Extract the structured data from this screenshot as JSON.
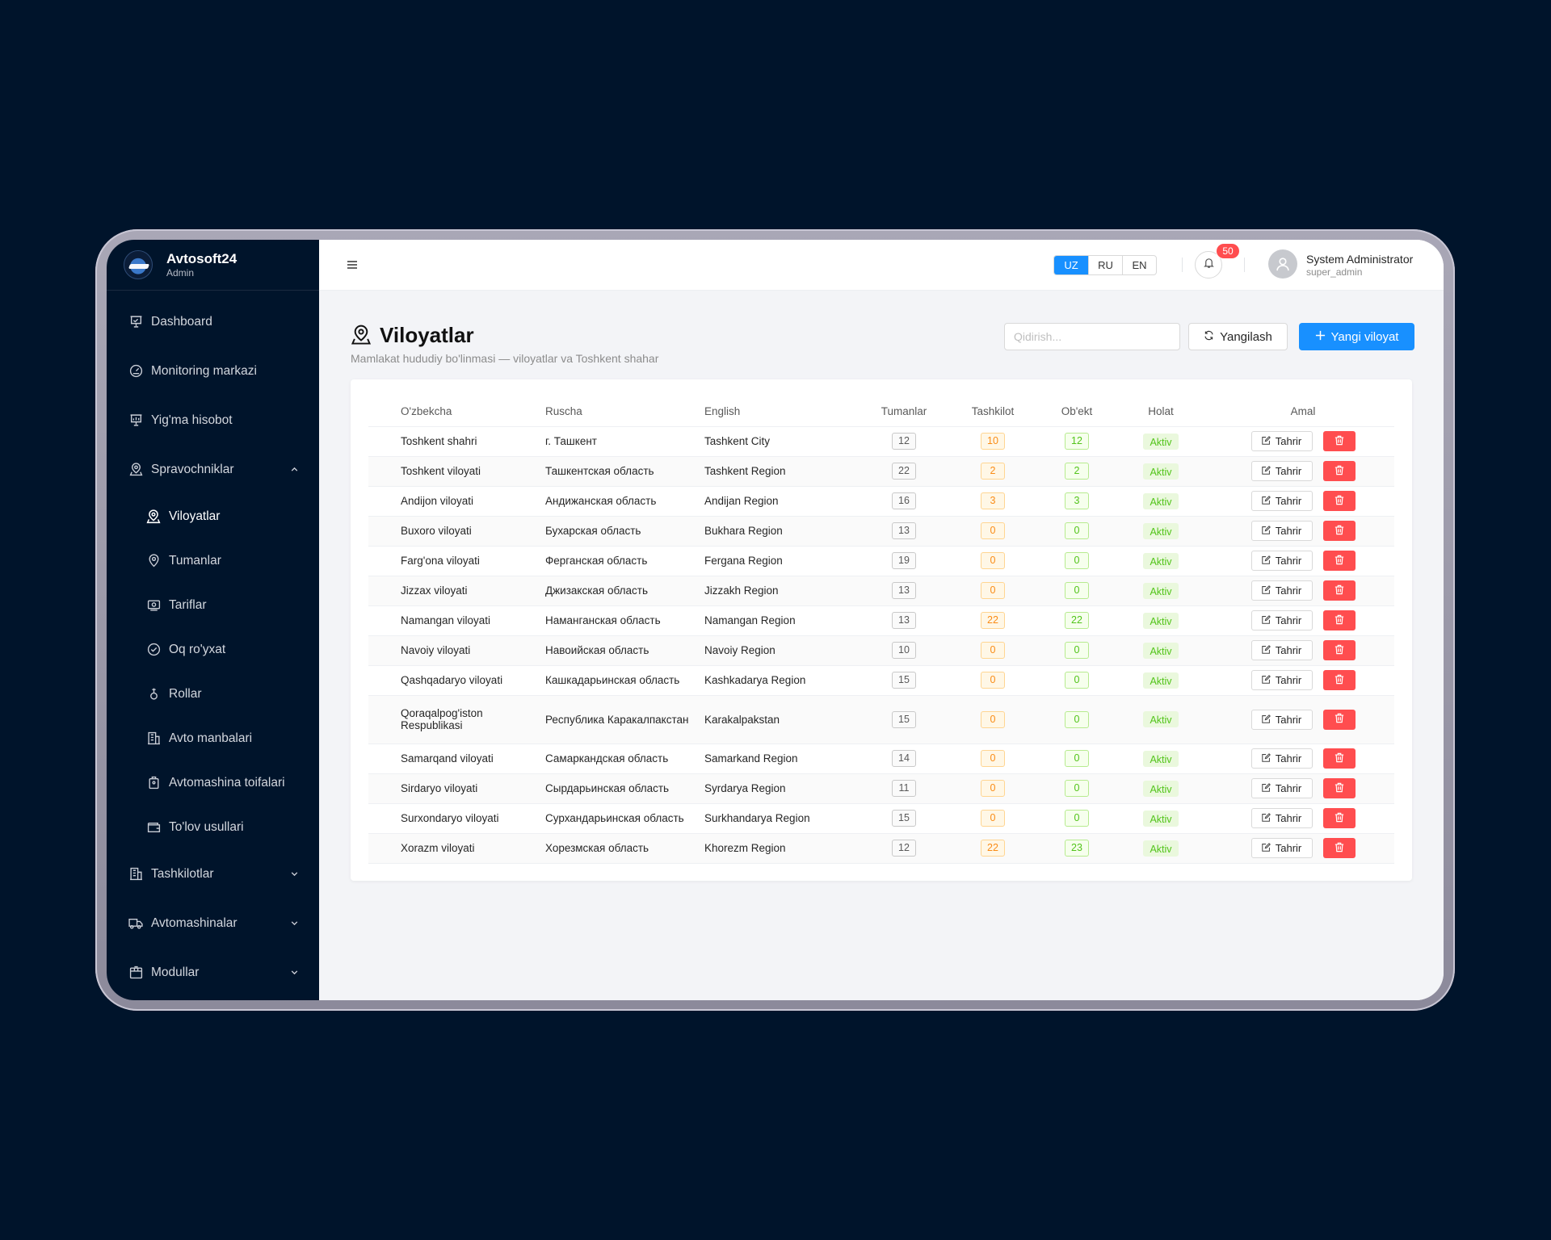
{
  "brand": {
    "name": "Avtosoft24",
    "role": "Admin"
  },
  "sidebar": {
    "items": [
      {
        "label": "Dashboard",
        "icon": "dashboard-icon"
      },
      {
        "label": "Monitoring markazi",
        "icon": "gauge-icon"
      },
      {
        "label": "Yig'ma hisobot",
        "icon": "report-icon"
      },
      {
        "label": "Spravochniklar",
        "icon": "map-pin-icon",
        "expanded": true
      },
      {
        "label": "Tashkilotlar",
        "icon": "building-icon"
      },
      {
        "label": "Avtomashinalar",
        "icon": "truck-icon"
      },
      {
        "label": "Modullar",
        "icon": "box-icon"
      }
    ],
    "subitems": [
      {
        "label": "Viloyatlar",
        "icon": "map-pin-icon",
        "active": true
      },
      {
        "label": "Tumanlar",
        "icon": "location-icon"
      },
      {
        "label": "Tariflar",
        "icon": "tariff-icon"
      },
      {
        "label": "Oq ro'yxat",
        "icon": "check-circle-icon"
      },
      {
        "label": "Rollar",
        "icon": "role-icon"
      },
      {
        "label": "Avto manbalari",
        "icon": "building-icon"
      },
      {
        "label": "Avtomashina toifalari",
        "icon": "tag-icon"
      },
      {
        "label": "To'lov usullari",
        "icon": "wallet-icon"
      }
    ]
  },
  "topbar": {
    "languages": [
      {
        "code": "UZ",
        "active": true
      },
      {
        "code": "RU",
        "active": false
      },
      {
        "code": "EN",
        "active": false
      }
    ],
    "notifications": "50",
    "user": {
      "name": "System Administrator",
      "login": "super_admin"
    }
  },
  "page": {
    "title": "Viloyatlar",
    "subtitle": "Mamlakat hududiy bo'linmasi — viloyatlar va Toshkent shahar",
    "search_placeholder": "Qidirish...",
    "refresh_label": "Yangilash",
    "new_label": "Yangi viloyat"
  },
  "table": {
    "columns": [
      "O'zbekcha",
      "Ruscha",
      "English",
      "Tumanlar",
      "Tashkilot",
      "Ob'ekt",
      "Holat",
      "Amal"
    ],
    "edit_label": "Tahrir",
    "rows": [
      {
        "uz": "Toshkent shahri",
        "ru": "г. Ташкент",
        "en": "Tashkent City",
        "tumanlar": "12",
        "tashkilot": "10",
        "obekt": "12",
        "holat": "Aktiv"
      },
      {
        "uz": "Toshkent viloyati",
        "ru": "Ташкентская область",
        "en": "Tashkent Region",
        "tumanlar": "22",
        "tashkilot": "2",
        "obekt": "2",
        "holat": "Aktiv"
      },
      {
        "uz": "Andijon viloyati",
        "ru": "Андижанская область",
        "en": "Andijan Region",
        "tumanlar": "16",
        "tashkilot": "3",
        "obekt": "3",
        "holat": "Aktiv"
      },
      {
        "uz": "Buxoro viloyati",
        "ru": "Бухарская область",
        "en": "Bukhara Region",
        "tumanlar": "13",
        "tashkilot": "0",
        "obekt": "0",
        "holat": "Aktiv"
      },
      {
        "uz": "Farg'ona viloyati",
        "ru": "Ферганская область",
        "en": "Fergana Region",
        "tumanlar": "19",
        "tashkilot": "0",
        "obekt": "0",
        "holat": "Aktiv"
      },
      {
        "uz": "Jizzax viloyati",
        "ru": "Джизакская область",
        "en": "Jizzakh Region",
        "tumanlar": "13",
        "tashkilot": "0",
        "obekt": "0",
        "holat": "Aktiv"
      },
      {
        "uz": "Namangan viloyati",
        "ru": "Наманганская область",
        "en": "Namangan Region",
        "tumanlar": "13",
        "tashkilot": "22",
        "obekt": "22",
        "holat": "Aktiv"
      },
      {
        "uz": "Navoiy viloyati",
        "ru": "Навоийская область",
        "en": "Navoiy Region",
        "tumanlar": "10",
        "tashkilot": "0",
        "obekt": "0",
        "holat": "Aktiv"
      },
      {
        "uz": "Qashqadaryo viloyati",
        "ru": "Кашкадарьинская область",
        "en": "Kashkadarya Region",
        "tumanlar": "15",
        "tashkilot": "0",
        "obekt": "0",
        "holat": "Aktiv"
      },
      {
        "uz": "Qoraqalpog'iston Respublikasi",
        "ru": "Республика Каракалпакстан",
        "en": "Karakalpakstan",
        "tumanlar": "15",
        "tashkilot": "0",
        "obekt": "0",
        "holat": "Aktiv"
      },
      {
        "uz": "Samarqand viloyati",
        "ru": "Самаркандская область",
        "en": "Samarkand Region",
        "tumanlar": "14",
        "tashkilot": "0",
        "obekt": "0",
        "holat": "Aktiv"
      },
      {
        "uz": "Sirdaryo viloyati",
        "ru": "Сырдарьинская область",
        "en": "Syrdarya Region",
        "tumanlar": "11",
        "tashkilot": "0",
        "obekt": "0",
        "holat": "Aktiv"
      },
      {
        "uz": "Surxondaryo viloyati",
        "ru": "Сурхандарьинская область",
        "en": "Surkhandarya Region",
        "tumanlar": "15",
        "tashkilot": "0",
        "obekt": "0",
        "holat": "Aktiv"
      },
      {
        "uz": "Xorazm viloyati",
        "ru": "Хорезмская область",
        "en": "Khorezm Region",
        "tumanlar": "12",
        "tashkilot": "22",
        "obekt": "23",
        "holat": "Aktiv"
      }
    ]
  },
  "colors": {
    "sidebar_bg": "#00142b",
    "primary": "#1890ff",
    "danger": "#ff4d4f",
    "success": "#52c41a",
    "warning": "#fa8c16"
  }
}
